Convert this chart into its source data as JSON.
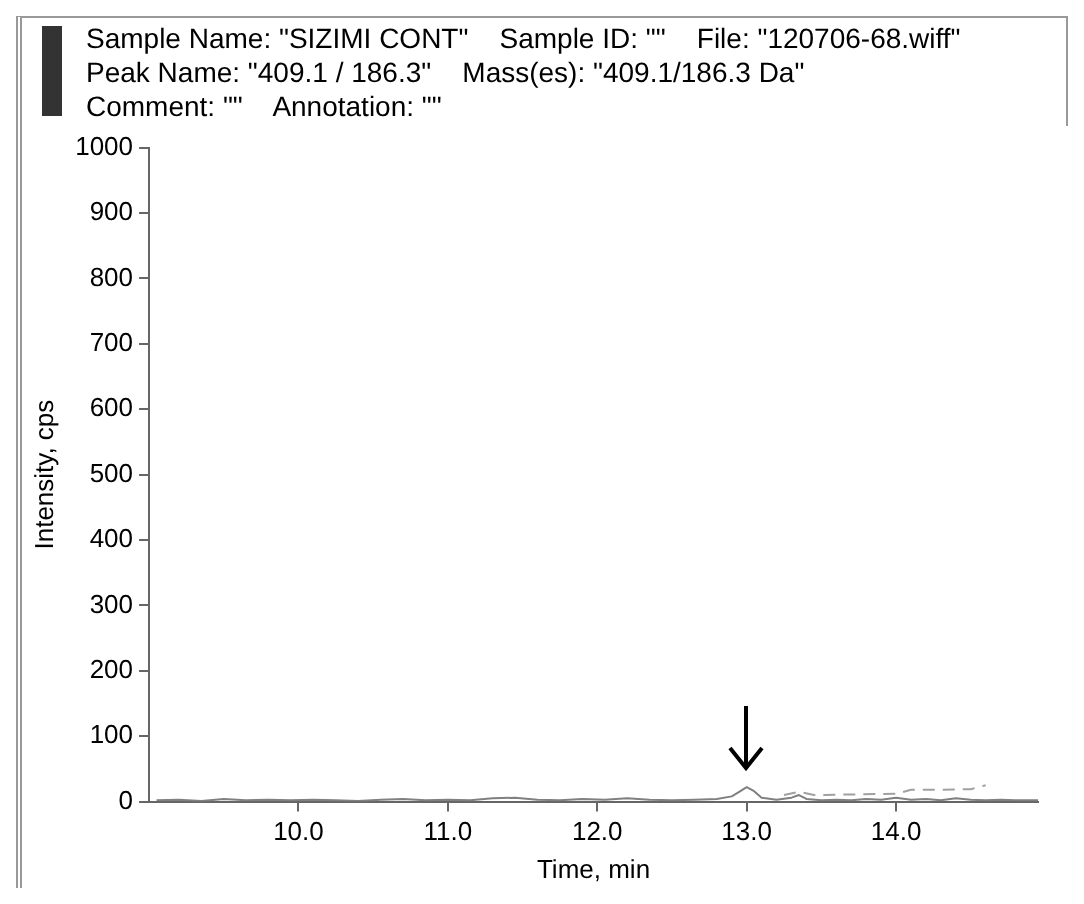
{
  "chart_data": {
    "type": "line",
    "annotations": [
      "Sample Name: \"SIZIMI CONT\"    Sample ID: \"\"    File: \"120706-68.wiff\"",
      "Peak Name: \"409.1 / 186.3\"    Mass(es): \"409.1/186.3 Da\"",
      "Comment: \"\"    Annotation: \"\""
    ],
    "xlabel": "Time, min",
    "ylabel": "Intensity, cps",
    "series": [
      {
        "color": "#808080",
        "line_style": "solid",
        "x": [
          9.05,
          9.2,
          9.35,
          9.5,
          9.65,
          9.8,
          9.95,
          10.1,
          10.25,
          10.4,
          10.55,
          10.7,
          10.85,
          11.0,
          11.15,
          11.3,
          11.45,
          11.6,
          11.75,
          11.9,
          12.05,
          12.2,
          12.35,
          12.5,
          12.65,
          12.8,
          12.9,
          12.95,
          13.0,
          13.05,
          13.1,
          13.2,
          13.3,
          13.35,
          13.4,
          13.5,
          13.6,
          13.7,
          13.8,
          13.9,
          14.0,
          14.1,
          14.2,
          14.3,
          14.4,
          14.5,
          14.6,
          14.7,
          14.8,
          14.95
        ],
        "values": [
          2,
          3,
          1,
          4,
          2,
          3,
          2,
          3,
          2,
          1,
          3,
          4,
          2,
          3,
          2,
          5,
          6,
          3,
          2,
          4,
          3,
          5,
          3,
          2,
          3,
          4,
          8,
          15,
          22,
          16,
          6,
          3,
          6,
          10,
          4,
          2,
          3,
          2,
          4,
          3,
          6,
          3,
          4,
          2,
          5,
          3,
          2,
          3,
          2,
          2
        ]
      },
      {
        "color": "#a0a0a0",
        "line_style": "dashed",
        "x": [
          13.25,
          13.35,
          13.45,
          14.0,
          14.1,
          14.3,
          14.5,
          14.6
        ],
        "values": [
          10,
          15,
          10,
          12,
          18,
          18,
          19,
          25
        ]
      }
    ],
    "xlim": [
      9.0,
      14.95
    ],
    "xticks": [
      {
        "value": 10,
        "label": "10.0"
      },
      {
        "value": 11,
        "label": "11.0"
      },
      {
        "value": 12,
        "label": "12.0"
      },
      {
        "value": 13,
        "label": "13.0"
      },
      {
        "value": 14,
        "label": "14.0"
      }
    ],
    "ylim": [
      0,
      1000
    ],
    "yticks": [
      0,
      100,
      200,
      300,
      400,
      500,
      600,
      700,
      800,
      900,
      1000
    ],
    "grid": false,
    "legend": false,
    "marker": "none"
  }
}
